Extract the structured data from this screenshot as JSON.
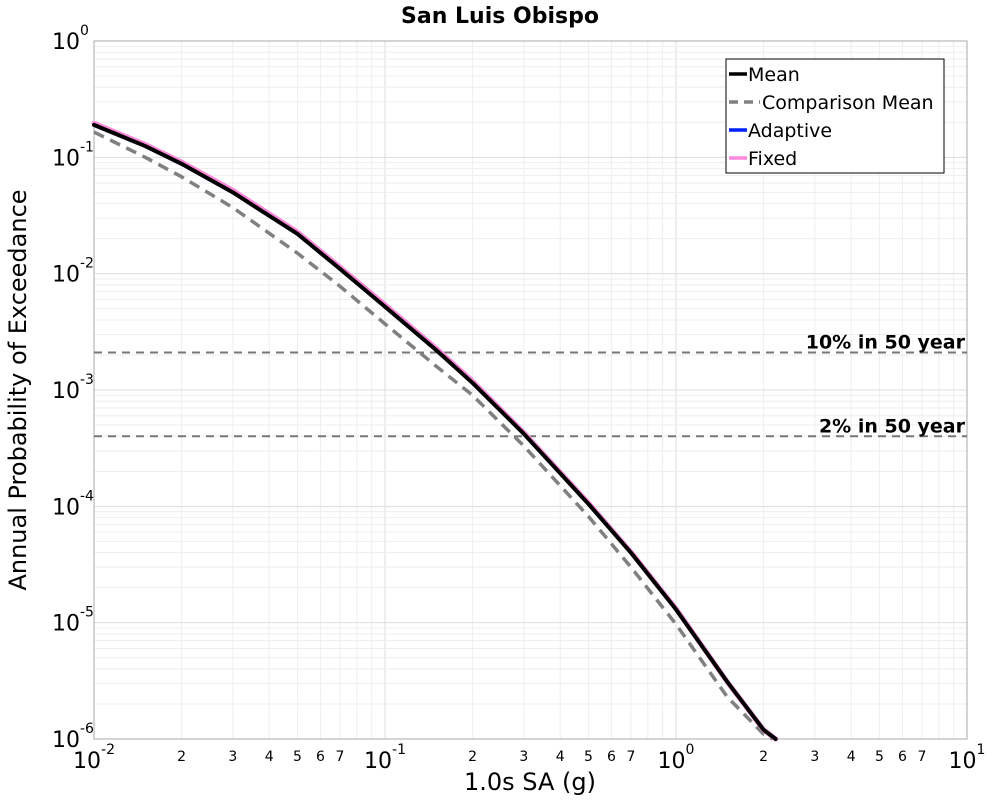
{
  "chart_data": {
    "type": "line",
    "title": "San Luis Obispo",
    "xlabel": "1.0s SA (g)",
    "ylabel": "Annual Probability of Exceedance",
    "x_scale": "log",
    "y_scale": "log",
    "xlim": [
      0.01,
      10
    ],
    "ylim": [
      1e-06,
      1
    ],
    "grid": true,
    "legend_position": "top-right",
    "x_ticks_major": [
      {
        "base": "10",
        "exp": "-2"
      },
      {
        "base": "10",
        "exp": "-1"
      },
      {
        "base": "10",
        "exp": "0"
      },
      {
        "base": "10",
        "exp": "1"
      }
    ],
    "y_ticks_major": [
      {
        "base": "10",
        "exp": "0"
      },
      {
        "base": "10",
        "exp": "-1"
      },
      {
        "base": "10",
        "exp": "-2"
      },
      {
        "base": "10",
        "exp": "-3"
      },
      {
        "base": "10",
        "exp": "-4"
      },
      {
        "base": "10",
        "exp": "-5"
      },
      {
        "base": "10",
        "exp": "-6"
      }
    ],
    "x_minor_labels": [
      "2",
      "3",
      "4",
      "5",
      "6",
      "7"
    ],
    "series": [
      {
        "name": "Mean",
        "color": "#000000",
        "style": "solid",
        "x": [
          0.01,
          0.015,
          0.02,
          0.03,
          0.05,
          0.07,
          0.1,
          0.15,
          0.2,
          0.3,
          0.5,
          0.7,
          1.0,
          1.5,
          2.0,
          2.2
        ],
        "y": [
          0.19,
          0.125,
          0.088,
          0.05,
          0.022,
          0.011,
          0.0052,
          0.0022,
          0.00115,
          0.00042,
          0.000105,
          4e-05,
          1.3e-05,
          3.1e-06,
          1.2e-06,
          1e-06
        ]
      },
      {
        "name": "Comparison Mean",
        "color": "#808080",
        "style": "dashed",
        "x": [
          0.01,
          0.015,
          0.02,
          0.03,
          0.05,
          0.07,
          0.1,
          0.15,
          0.2,
          0.3,
          0.5,
          0.7,
          1.0,
          1.5,
          2.0,
          2.15
        ],
        "y": [
          0.165,
          0.1,
          0.068,
          0.037,
          0.015,
          0.0078,
          0.0037,
          0.0016,
          0.0009,
          0.00033,
          8.2e-05,
          3e-05,
          9.7e-06,
          2.3e-06,
          1.1e-06,
          1e-06
        ]
      },
      {
        "name": "Adaptive",
        "color": "#0020ff",
        "style": "solid",
        "x": [
          0.01,
          0.015,
          0.02,
          0.03,
          0.05,
          0.07,
          0.1,
          0.15,
          0.2,
          0.3,
          0.5,
          0.7,
          1.0,
          1.5,
          2.0,
          2.2
        ],
        "y": [
          0.188,
          0.124,
          0.087,
          0.0495,
          0.0218,
          0.0109,
          0.00515,
          0.00218,
          0.00114,
          0.000416,
          0.000104,
          3.96e-05,
          1.29e-05,
          3.1e-06,
          1.2e-06,
          1e-06
        ]
      },
      {
        "name": "Fixed",
        "color": "#ff88dd",
        "style": "solid",
        "x": [
          0.01,
          0.015,
          0.02,
          0.03,
          0.05,
          0.07,
          0.1,
          0.15,
          0.2,
          0.3,
          0.5,
          0.7,
          1.0,
          1.5,
          2.0,
          2.2
        ],
        "y": [
          0.196,
          0.129,
          0.091,
          0.052,
          0.0228,
          0.0114,
          0.0054,
          0.00228,
          0.00119,
          0.00043,
          0.000107,
          4.05e-05,
          1.32e-05,
          3.1e-06,
          1.2e-06,
          1e-06
        ]
      }
    ],
    "reference_lines": [
      {
        "label": "10% in 50 year",
        "y": 0.0021
      },
      {
        "label": "2% in 50 year",
        "y": 0.0004
      }
    ]
  }
}
